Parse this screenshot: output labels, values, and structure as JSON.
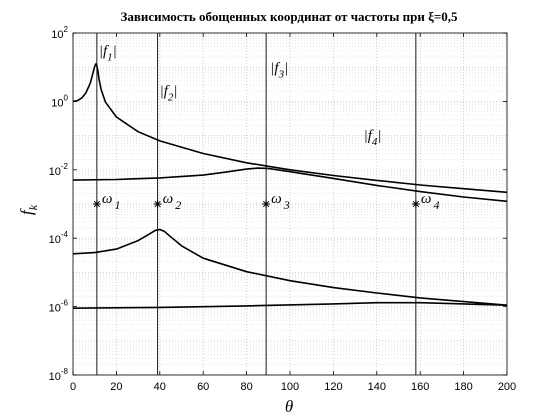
{
  "chart_data": {
    "type": "line",
    "title": "Зависимость обощенных координат от частоты при ξ=0,5",
    "xlabel": "θ",
    "ylabel": "f",
    "ylabel_sub": "k",
    "xlim": [
      0,
      200
    ],
    "ylim": [
      1e-08,
      100
    ],
    "yscale": "log",
    "grid": true,
    "x_ticks": [
      "0",
      "20",
      "40",
      "60",
      "80",
      "100",
      "120",
      "140",
      "160",
      "180",
      "200"
    ],
    "y_ticks": [
      {
        "base": "10",
        "exp": "-8"
      },
      {
        "base": "10",
        "exp": "-6"
      },
      {
        "base": "10",
        "exp": "-4"
      },
      {
        "base": "10",
        "exp": "-2"
      },
      {
        "base": "10",
        "exp": "0"
      },
      {
        "base": "10",
        "exp": "2"
      }
    ],
    "series": [
      {
        "name": "|f1|",
        "x": [
          0,
          2,
          4,
          6,
          8,
          9,
          10,
          10.5,
          11,
          11.5,
          12,
          13,
          15,
          20,
          30,
          40,
          60,
          80,
          100,
          120,
          140,
          160,
          180,
          200
        ],
        "y": [
          1.0,
          1.05,
          1.25,
          1.8,
          3.5,
          6.0,
          10.5,
          12.5,
          11.0,
          7.5,
          4.5,
          2.2,
          0.95,
          0.35,
          0.13,
          0.07,
          0.03,
          0.016,
          0.01,
          0.0068,
          0.0049,
          0.0036,
          0.0028,
          0.0022
        ]
      },
      {
        "name": "|f2|",
        "x": [
          0,
          20,
          40,
          60,
          70,
          80,
          85,
          90,
          100,
          120,
          140,
          160,
          180,
          200
        ],
        "y": [
          0.005,
          0.0052,
          0.0058,
          0.007,
          0.0085,
          0.0105,
          0.0112,
          0.011,
          0.0088,
          0.0056,
          0.0035,
          0.0023,
          0.0016,
          0.0012
        ]
      },
      {
        "name": "|f3|",
        "x": [
          0,
          10,
          20,
          30,
          35,
          38,
          40,
          42,
          45,
          50,
          60,
          80,
          100,
          120,
          140,
          160,
          180,
          200
        ],
        "y": [
          3.5e-05,
          3.8e-05,
          4.8e-05,
          8.5e-05,
          0.00013,
          0.00017,
          0.00018,
          0.00016,
          0.00011,
          6e-05,
          2.6e-05,
          1.05e-05,
          5.7e-06,
          3.6e-06,
          2.5e-06,
          1.8e-06,
          1.4e-06,
          1.1e-06
        ]
      },
      {
        "name": "|f4|",
        "x": [
          0,
          40,
          80,
          120,
          140,
          160,
          180,
          200
        ],
        "y": [
          9e-07,
          9.5e-07,
          1.05e-06,
          1.2e-06,
          1.3e-06,
          1.3e-06,
          1.2e-06,
          1.1e-06
        ]
      }
    ],
    "omega_markers": [
      {
        "name": "ω1",
        "base": "ω",
        "sub": "1",
        "x": 11,
        "y": 0.001
      },
      {
        "name": "ω2",
        "base": "ω",
        "sub": "2",
        "x": 39,
        "y": 0.001
      },
      {
        "name": "ω3",
        "base": "ω",
        "sub": "3",
        "x": 89,
        "y": 0.001
      },
      {
        "name": "ω4",
        "base": "ω",
        "sub": "4",
        "x": 158,
        "y": 0.001
      }
    ],
    "vertical_lines": [
      11,
      39,
      89,
      158
    ],
    "series_labels": [
      {
        "text": "|f",
        "sub": "1",
        "close": "|",
        "x": 11,
        "y": 22
      },
      {
        "text": "|f",
        "sub": "2",
        "close": "|",
        "x": 39,
        "y": 1.5
      },
      {
        "text": "|f",
        "sub": "3",
        "close": "|",
        "x": 90,
        "y": 7
      },
      {
        "text": "|f",
        "sub": "4",
        "close": "|",
        "x": 133,
        "y": 0.075
      }
    ]
  }
}
